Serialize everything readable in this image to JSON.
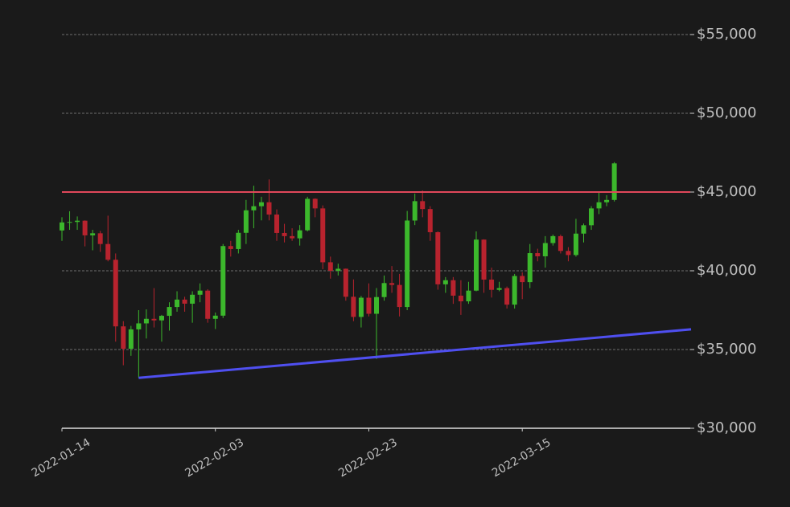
{
  "chart_data": {
    "type": "candlestick",
    "x": [
      "2022-01-14",
      "2022-01-15",
      "2022-01-16",
      "2022-01-17",
      "2022-01-18",
      "2022-01-19",
      "2022-01-20",
      "2022-01-21",
      "2022-01-22",
      "2022-01-23",
      "2022-01-24",
      "2022-01-25",
      "2022-01-26",
      "2022-01-27",
      "2022-01-28",
      "2022-01-29",
      "2022-01-30",
      "2022-01-31",
      "2022-02-01",
      "2022-02-02",
      "2022-02-03",
      "2022-02-04",
      "2022-02-05",
      "2022-02-06",
      "2022-02-07",
      "2022-02-08",
      "2022-02-09",
      "2022-02-10",
      "2022-02-11",
      "2022-02-12",
      "2022-02-13",
      "2022-02-14",
      "2022-02-15",
      "2022-02-16",
      "2022-02-17",
      "2022-02-18",
      "2022-02-19",
      "2022-02-20",
      "2022-02-21",
      "2022-02-22",
      "2022-02-23",
      "2022-02-24",
      "2022-02-25",
      "2022-02-26",
      "2022-02-27",
      "2022-02-28",
      "2022-03-01",
      "2022-03-02",
      "2022-03-03",
      "2022-03-04",
      "2022-03-05",
      "2022-03-06",
      "2022-03-07",
      "2022-03-08",
      "2022-03-09",
      "2022-03-10",
      "2022-03-11",
      "2022-03-12",
      "2022-03-13",
      "2022-03-14",
      "2022-03-15",
      "2022-03-16",
      "2022-03-17",
      "2022-03-18",
      "2022-03-19",
      "2022-03-20",
      "2022-03-21",
      "2022-03-22",
      "2022-03-23",
      "2022-03-24",
      "2022-03-25",
      "2022-03-26",
      "2022-03-27"
    ],
    "open": [
      42560,
      43070,
      43100,
      43180,
      42250,
      42380,
      41700,
      40700,
      36470,
      35050,
      36280,
      36660,
      36950,
      36850,
      37140,
      37700,
      38170,
      37910,
      38480,
      38740,
      36950,
      37150,
      41570,
      41380,
      42410,
      43840,
      44100,
      44350,
      43570,
      42400,
      42200,
      42060,
      42570,
      44570,
      43960,
      40540,
      40000,
      40130,
      38350,
      37070,
      38290,
      37270,
      38330,
      39220,
      39100,
      37700,
      43190,
      44420,
      43920,
      42450,
      39140,
      39400,
      38420,
      38060,
      38740,
      41980,
      39440,
      38790,
      38900,
      37850,
      39670,
      39280,
      41120,
      40920,
      41760,
      42200,
      41260,
      41000,
      42360,
      42890,
      43960,
      44350,
      44500
    ],
    "high": [
      43400,
      43780,
      43450,
      43200,
      42600,
      42530,
      43500,
      41100,
      36800,
      36500,
      37500,
      37550,
      38900,
      37200,
      38000,
      38700,
      38350,
      38700,
      39200,
      38830,
      37350,
      41700,
      41900,
      42600,
      44500,
      45400,
      44700,
      45800,
      43900,
      42980,
      42700,
      42900,
      44700,
      44600,
      44150,
      40900,
      40450,
      40140,
      39450,
      38400,
      39200,
      38900,
      39700,
      40300,
      39800,
      43800,
      44900,
      45100,
      44100,
      42500,
      39600,
      39600,
      39400,
      39300,
      42500,
      42000,
      40200,
      39300,
      39000,
      39800,
      39900,
      41700,
      41400,
      42200,
      42300,
      42300,
      41500,
      43300,
      43000,
      44100,
      45000,
      44800,
      46900
    ],
    "low": [
      41900,
      42600,
      42600,
      41550,
      41300,
      41200,
      40600,
      35500,
      34000,
      34600,
      33200,
      35700,
      36400,
      35500,
      36200,
      37400,
      37400,
      36700,
      38000,
      36700,
      36300,
      37000,
      40900,
      41100,
      41700,
      42700,
      43200,
      43200,
      41900,
      41800,
      41900,
      41600,
      42500,
      43400,
      40100,
      39500,
      39700,
      38100,
      36800,
      36400,
      37100,
      34400,
      38100,
      38600,
      37100,
      37500,
      42900,
      43400,
      41900,
      38800,
      38600,
      37900,
      37200,
      37900,
      38700,
      38600,
      38300,
      38700,
      37600,
      37600,
      38200,
      38900,
      40600,
      40200,
      41600,
      41100,
      40600,
      40900,
      41800,
      42600,
      43600,
      44100,
      44400
    ],
    "close": [
      43070,
      43100,
      43180,
      42250,
      42380,
      41700,
      40700,
      36470,
      35050,
      36280,
      36660,
      36950,
      36850,
      37140,
      37700,
      38170,
      37910,
      38480,
      38740,
      36950,
      37150,
      41570,
      41380,
      42410,
      43840,
      44100,
      44350,
      43570,
      42400,
      42200,
      42060,
      42570,
      44570,
      43960,
      40540,
      40000,
      40130,
      38350,
      37070,
      38290,
      37270,
      38330,
      39220,
      39100,
      37700,
      43190,
      44420,
      43920,
      42450,
      39140,
      39400,
      38420,
      38060,
      38740,
      41980,
      39440,
      38790,
      38900,
      37850,
      39670,
      39280,
      41120,
      40920,
      41760,
      42200,
      41260,
      41000,
      42360,
      42890,
      43960,
      44350,
      44500,
      46820
    ],
    "up_color": "#3cb82c",
    "down_color": "#b8232e",
    "xlim": [
      "2022-01-14",
      "2022-04-06"
    ],
    "xticks": [
      "2022-01-14",
      "2022-02-03",
      "2022-02-23",
      "2022-03-15"
    ],
    "ylim": [
      30000,
      55000
    ],
    "yticks": [
      {
        "value": 30000,
        "label": "$30,000"
      },
      {
        "value": 35000,
        "label": "$35,000"
      },
      {
        "value": 40000,
        "label": "$40,000"
      },
      {
        "value": 45000,
        "label": "$45,000"
      },
      {
        "value": 50000,
        "label": "$50,000"
      },
      {
        "value": 55000,
        "label": "$55,000"
      }
    ],
    "grid": true,
    "hlines": [
      {
        "value": 45000,
        "color": "#e0485a"
      }
    ],
    "trendlines": [
      {
        "x": [
          "2022-01-24",
          "2022-04-06"
        ],
        "y": [
          33200,
          36280
        ],
        "color": "#4f4ff0"
      }
    ]
  }
}
